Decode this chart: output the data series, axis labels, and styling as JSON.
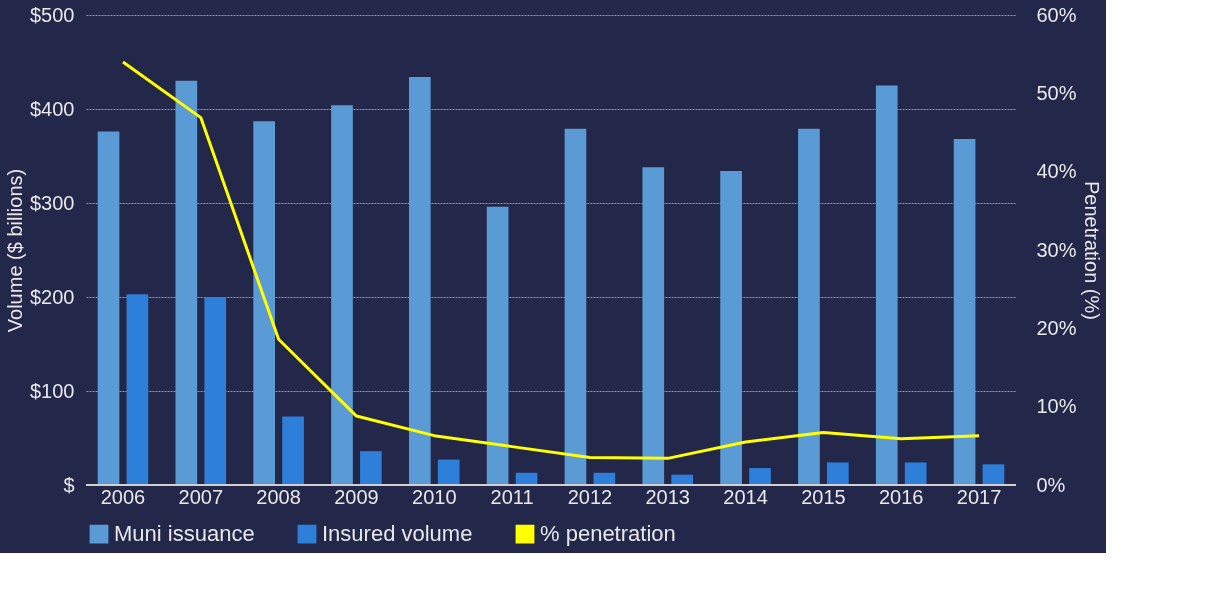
{
  "chart_data": {
    "type": "bar",
    "ylabel": "Volume ($ billions)",
    "y2label": "Penetration (%)",
    "categories": [
      "2006",
      "2007",
      "2008",
      "2009",
      "2010",
      "2011",
      "2012",
      "2013",
      "2014",
      "2015",
      "2016",
      "2017"
    ],
    "series": [
      {
        "name": "Muni issuance",
        "color": "#5b9bd5",
        "values": [
          376,
          430,
          387,
          404,
          434,
          296,
          379,
          338,
          334,
          379,
          425,
          368
        ]
      },
      {
        "name": "Insured volume",
        "color": "#2e7fd9",
        "values": [
          203,
          200,
          73,
          36,
          27,
          13,
          13,
          11,
          18,
          24,
          24,
          22
        ]
      },
      {
        "name": "% penetration",
        "color": "#ffff00",
        "type": "line",
        "axis": "y2",
        "values": [
          54,
          46.9,
          18.6,
          8.8,
          6.3,
          4.9,
          3.5,
          3.4,
          5.5,
          6.7,
          5.9,
          6.3
        ]
      }
    ],
    "ylim": [
      0,
      500
    ],
    "yticks": [
      {
        "value": 0,
        "label": "$"
      },
      {
        "value": 100,
        "label": "$100"
      },
      {
        "value": 200,
        "label": "$200"
      },
      {
        "value": 300,
        "label": "$300"
      },
      {
        "value": 400,
        "label": "$400"
      },
      {
        "value": 500,
        "label": "$500"
      }
    ],
    "y2lim": [
      0,
      60
    ],
    "y2ticks": [
      {
        "value": 0,
        "label": "0%"
      },
      {
        "value": 10,
        "label": "10%"
      },
      {
        "value": 20,
        "label": "20%"
      },
      {
        "value": 30,
        "label": "30%"
      },
      {
        "value": 40,
        "label": "40%"
      },
      {
        "value": 50,
        "label": "50%"
      },
      {
        "value": 60,
        "label": "60%"
      }
    ],
    "grid": "y",
    "legend": "bottom",
    "line_style": "solid",
    "marker": "none"
  }
}
